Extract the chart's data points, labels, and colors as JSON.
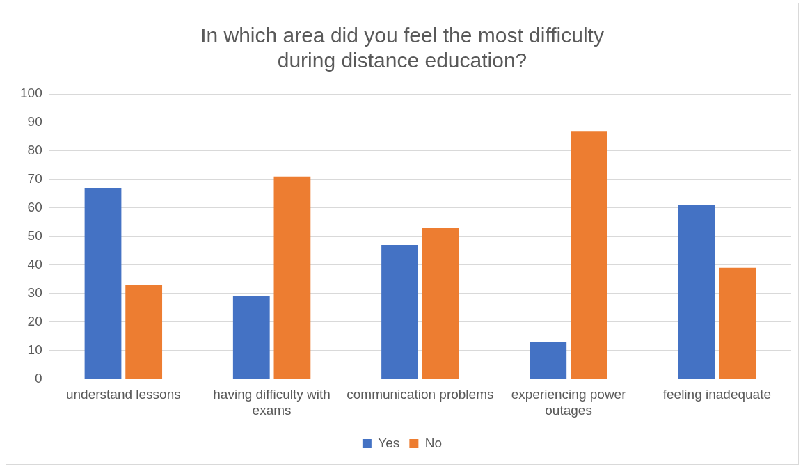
{
  "chart_data": {
    "type": "bar",
    "title": "In which area did you feel the most difficulty during distance education?",
    "categories": [
      "understand lessons",
      "having difficulty with exams",
      "communication problems",
      "experiencing power outages",
      "feeling inadequate"
    ],
    "series": [
      {
        "name": "Yes",
        "color": "#4472c4",
        "values": [
          67,
          29,
          47,
          13,
          61
        ]
      },
      {
        "name": "No",
        "color": "#ed7d31",
        "values": [
          33,
          71,
          53,
          87,
          39
        ]
      }
    ],
    "ylim": [
      0,
      100
    ],
    "yticks": [
      0,
      10,
      20,
      30,
      40,
      50,
      60,
      70,
      80,
      90,
      100
    ],
    "grid": "y",
    "legend": "bottom"
  }
}
